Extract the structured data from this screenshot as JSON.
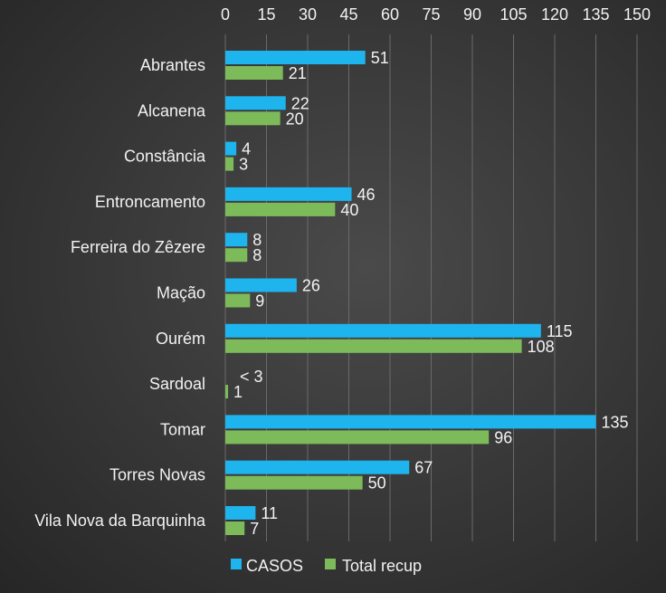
{
  "chart_data": {
    "type": "bar",
    "orientation": "horizontal",
    "categories": [
      "Abrantes",
      "Alcanena",
      "Constância",
      "Entroncamento",
      "Ferreira do Zêzere",
      "Mação",
      "Ourém",
      "Sardoal",
      "Tomar",
      "Torres Novas",
      "Vila Nova da Barquinha"
    ],
    "series": [
      {
        "name": "CASOS",
        "color": "#1eb4ee",
        "values": [
          51,
          22,
          4,
          46,
          8,
          26,
          115,
          0,
          135,
          67,
          11
        ],
        "labels": [
          "51",
          "22",
          "4",
          "46",
          "8",
          "26",
          "115",
          "< 3",
          "135",
          "67",
          "11"
        ]
      },
      {
        "name": "Total recup",
        "color": "#7dbb5a",
        "values": [
          21,
          20,
          3,
          40,
          8,
          9,
          108,
          1,
          96,
          50,
          7
        ],
        "labels": [
          "21",
          "20",
          "3",
          "40",
          "8",
          "9",
          "108",
          "1",
          "96",
          "50",
          "7"
        ]
      }
    ],
    "xticks": [
      "0",
      "15",
      "30",
      "45",
      "60",
      "75",
      "90",
      "105",
      "120",
      "135",
      "150"
    ],
    "xlim": [
      0,
      150
    ],
    "xaxis_position": "top",
    "grid": true,
    "legend": "bottom"
  }
}
